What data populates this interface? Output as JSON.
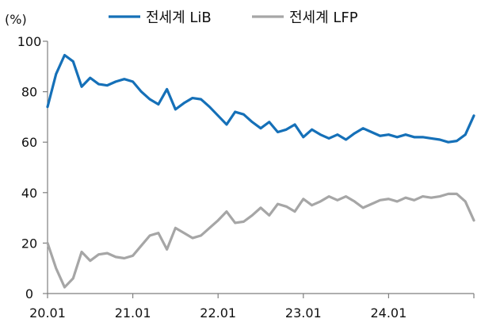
{
  "chart_data": {
    "type": "line",
    "unit_label": "(%)",
    "ylim": [
      0,
      100
    ],
    "yticks": [
      0,
      20,
      40,
      60,
      80,
      100
    ],
    "xlim": [
      0,
      50
    ],
    "xticks": [
      {
        "label": "20.01",
        "pos": 0
      },
      {
        "label": "21.01",
        "pos": 10
      },
      {
        "label": "22.01",
        "pos": 20
      },
      {
        "label": "23.01",
        "pos": 30
      },
      {
        "label": "24.01",
        "pos": 40
      }
    ],
    "grid": false,
    "legend_position": "top",
    "series": [
      {
        "name": "전세계 LiB",
        "color": "#1570b8",
        "values": [
          74,
          87,
          94.5,
          92,
          82,
          85.5,
          83,
          82.5,
          84,
          85,
          84,
          80,
          77,
          75,
          81,
          73,
          75.5,
          77.5,
          77,
          74,
          70.5,
          67,
          72,
          71,
          68,
          65.5,
          68,
          64,
          65,
          67,
          62,
          65,
          63,
          61.5,
          63,
          61,
          63.5,
          65.5,
          64,
          62.5,
          63,
          62,
          63,
          62,
          62,
          61.5,
          61,
          60,
          60.5,
          63,
          70.5
        ]
      },
      {
        "name": "전세계 LFP",
        "color": "#a6a6a6",
        "values": [
          20,
          10,
          2.5,
          6,
          16.5,
          13,
          15.5,
          16,
          14.5,
          14,
          15,
          19,
          23,
          24,
          17.5,
          26,
          24,
          22,
          23,
          26,
          29,
          32.5,
          28,
          28.5,
          31,
          34,
          31,
          35.5,
          34.5,
          32.5,
          37.5,
          35,
          36.5,
          38.5,
          37,
          38.5,
          36.5,
          34,
          35.5,
          37,
          37.5,
          36.5,
          38,
          37,
          38.5,
          38,
          38.5,
          39.5,
          39.5,
          36.5,
          29
        ]
      }
    ]
  }
}
